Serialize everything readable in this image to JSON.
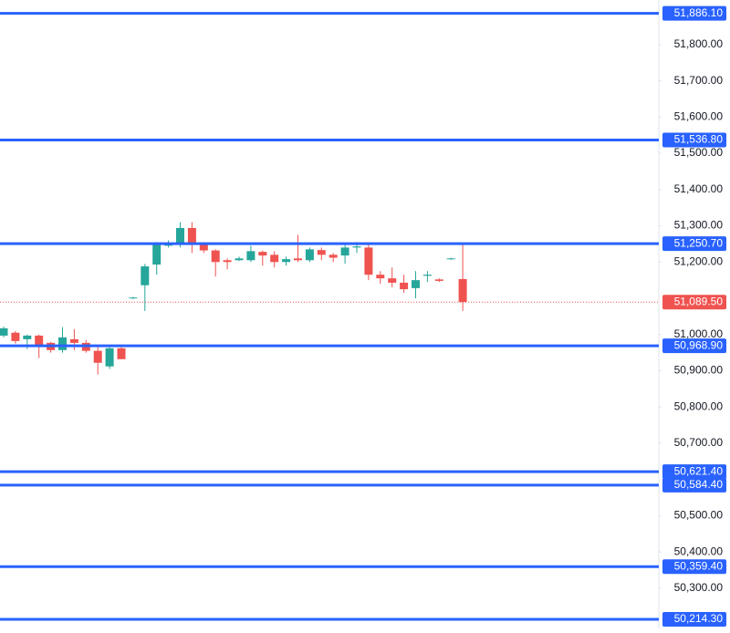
{
  "chart_data": {
    "type": "candlestick",
    "up_color": "#26a69a",
    "down_color": "#ef5350",
    "level_color": "#2962ff",
    "ylim": [
      50189,
      51923
    ],
    "yticks": [
      {
        "value": 51800,
        "label": "51,800.00"
      },
      {
        "value": 51700,
        "label": "51,700.00"
      },
      {
        "value": 51600,
        "label": "51,600.00"
      },
      {
        "value": 51500,
        "label": "51,500.00"
      },
      {
        "value": 51400,
        "label": "51,400.00"
      },
      {
        "value": 51300,
        "label": "51,300.00"
      },
      {
        "value": 51200,
        "label": "51,200.00"
      },
      {
        "value": 51000,
        "label": "51,000.00"
      },
      {
        "value": 50900,
        "label": "50,900.00"
      },
      {
        "value": 50800,
        "label": "50,800.00"
      },
      {
        "value": 50700,
        "label": "50,700.00"
      },
      {
        "value": 50500,
        "label": "50,500.00"
      },
      {
        "value": 50400,
        "label": "50,400.00"
      },
      {
        "value": 50300,
        "label": "50,300.00"
      }
    ],
    "levels": [
      {
        "value": 51886.1,
        "label": "51,886.10"
      },
      {
        "value": 51536.8,
        "label": "51,536.80"
      },
      {
        "value": 51250.7,
        "label": "51,250.70"
      },
      {
        "value": 50968.9,
        "label": "50,968.90"
      },
      {
        "value": 50621.4,
        "label": "50,621.40"
      },
      {
        "value": 50584.4,
        "label": "50,584.40"
      },
      {
        "value": 50359.4,
        "label": "50,359.40"
      },
      {
        "value": 50214.3,
        "label": "50,214.30"
      }
    ],
    "current_price": {
      "value": 51089.5,
      "label": "51,089.50"
    },
    "open": [
      50997,
      51005,
      50987,
      50997,
      50977,
      50957,
      50987,
      50977,
      50955,
      50912,
      50962,
      51100,
      51136,
      51193,
      51245,
      51250,
      51294,
      51250,
      51232,
      51205,
      51205,
      51205,
      51228,
      51220,
      51200,
      51210,
      51205,
      51233,
      51220,
      51218,
      51240,
      51240,
      51165,
      51155,
      51143,
      51128,
      51162,
      51152,
      51208,
      51153
    ],
    "high": [
      51022,
      51010,
      51000,
      51000,
      50980,
      51020,
      51015,
      50985,
      50965,
      50965,
      50965,
      51104,
      51195,
      51255,
      51260,
      51310,
      51310,
      51255,
      51235,
      51210,
      51215,
      51245,
      51232,
      51230,
      51215,
      51275,
      51240,
      51240,
      51225,
      51250,
      51255,
      51253,
      51175,
      51185,
      51165,
      51175,
      51175,
      51155,
      51212,
      51250
    ],
    "low": [
      50992,
      50975,
      50960,
      50935,
      50950,
      50950,
      50957,
      50950,
      50890,
      50905,
      50932,
      51098,
      51065,
      51165,
      51240,
      51240,
      51225,
      51225,
      51160,
      51180,
      51203,
      51200,
      51190,
      51185,
      51190,
      51200,
      51200,
      51205,
      51200,
      51195,
      51225,
      51150,
      51140,
      51130,
      51115,
      51100,
      51145,
      51145,
      51206,
      51065
    ],
    "close": [
      51017,
      50982,
      50997,
      50967,
      50957,
      50992,
      50977,
      50955,
      50922,
      50962,
      50932,
      51102,
      51188,
      51250,
      51250,
      51294,
      51250,
      51232,
      51200,
      51200,
      51210,
      51230,
      51218,
      51200,
      51208,
      51205,
      51235,
      51220,
      51212,
      51240,
      51243,
      51165,
      51155,
      51143,
      51125,
      51150,
      51165,
      51148,
      51210,
      51089.5
    ]
  }
}
